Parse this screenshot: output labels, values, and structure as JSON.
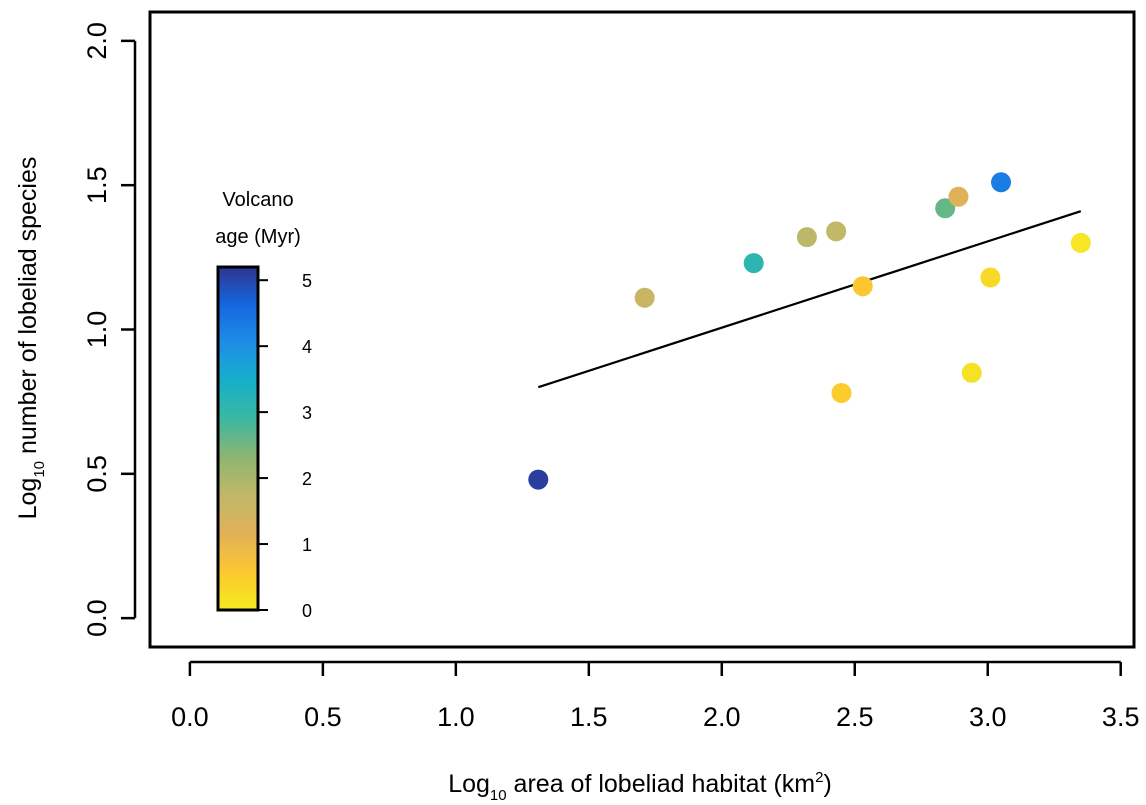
{
  "chart_data": {
    "type": "scatter",
    "xlabel_main": "Log",
    "xlabel_sub": "10",
    "xlabel_rest": " area of lobeliad habitat (km",
    "xlabel_sup": "2",
    "xlabel_end": ")",
    "ylabel_main": "Log",
    "ylabel_sub": "10",
    "ylabel_rest": " number of lobeliad species",
    "xlim": [
      -0.15,
      3.55
    ],
    "ylim": [
      -0.1,
      2.1
    ],
    "x_ticks": [
      0.0,
      0.5,
      1.0,
      1.5,
      2.0,
      2.5,
      3.0,
      3.5
    ],
    "x_tick_labels": [
      "0.0",
      "0.5",
      "1.0",
      "1.5",
      "2.0",
      "2.5",
      "3.0",
      "3.5"
    ],
    "y_ticks": [
      0.0,
      0.5,
      1.0,
      1.5,
      2.0
    ],
    "y_tick_labels": [
      "0.0",
      "0.5",
      "1.0",
      "1.5",
      "2.0"
    ],
    "points": [
      {
        "x": 1.31,
        "y": 0.48,
        "age": 5.1
      },
      {
        "x": 1.71,
        "y": 1.11,
        "age": 1.6
      },
      {
        "x": 2.12,
        "y": 1.23,
        "age": 3.1
      },
      {
        "x": 2.32,
        "y": 1.32,
        "age": 1.8
      },
      {
        "x": 2.43,
        "y": 1.34,
        "age": 1.7
      },
      {
        "x": 2.45,
        "y": 0.78,
        "age": 0.5
      },
      {
        "x": 2.53,
        "y": 1.15,
        "age": 0.6
      },
      {
        "x": 2.84,
        "y": 1.42,
        "age": 2.6
      },
      {
        "x": 2.89,
        "y": 1.46,
        "age": 1.2
      },
      {
        "x": 2.94,
        "y": 0.85,
        "age": 0.15
      },
      {
        "x": 3.01,
        "y": 1.18,
        "age": 0.3
      },
      {
        "x": 3.05,
        "y": 1.51,
        "age": 4.3
      },
      {
        "x": 3.35,
        "y": 1.3,
        "age": 0.1
      }
    ],
    "fit_line": {
      "x": [
        1.31,
        3.35
      ],
      "y": [
        0.8,
        1.41
      ]
    },
    "colorbar": {
      "title_line1": "Volcano",
      "title_line2": "age (Myr)",
      "ticks": [
        0,
        1,
        2,
        3,
        4,
        5
      ],
      "tick_labels": [
        "0",
        "1",
        "2",
        "3",
        "4",
        "5"
      ],
      "range": [
        0,
        5.2
      ],
      "colors": [
        "#f4ec20",
        "#fdc72f",
        "#e1b158",
        "#c1b868",
        "#8fb570",
        "#3cb8a0",
        "#15b0c8",
        "#1e8ee6",
        "#1567e0",
        "#2e3590"
      ]
    },
    "grid": false,
    "legend": "colorbar top-left inside plot"
  }
}
